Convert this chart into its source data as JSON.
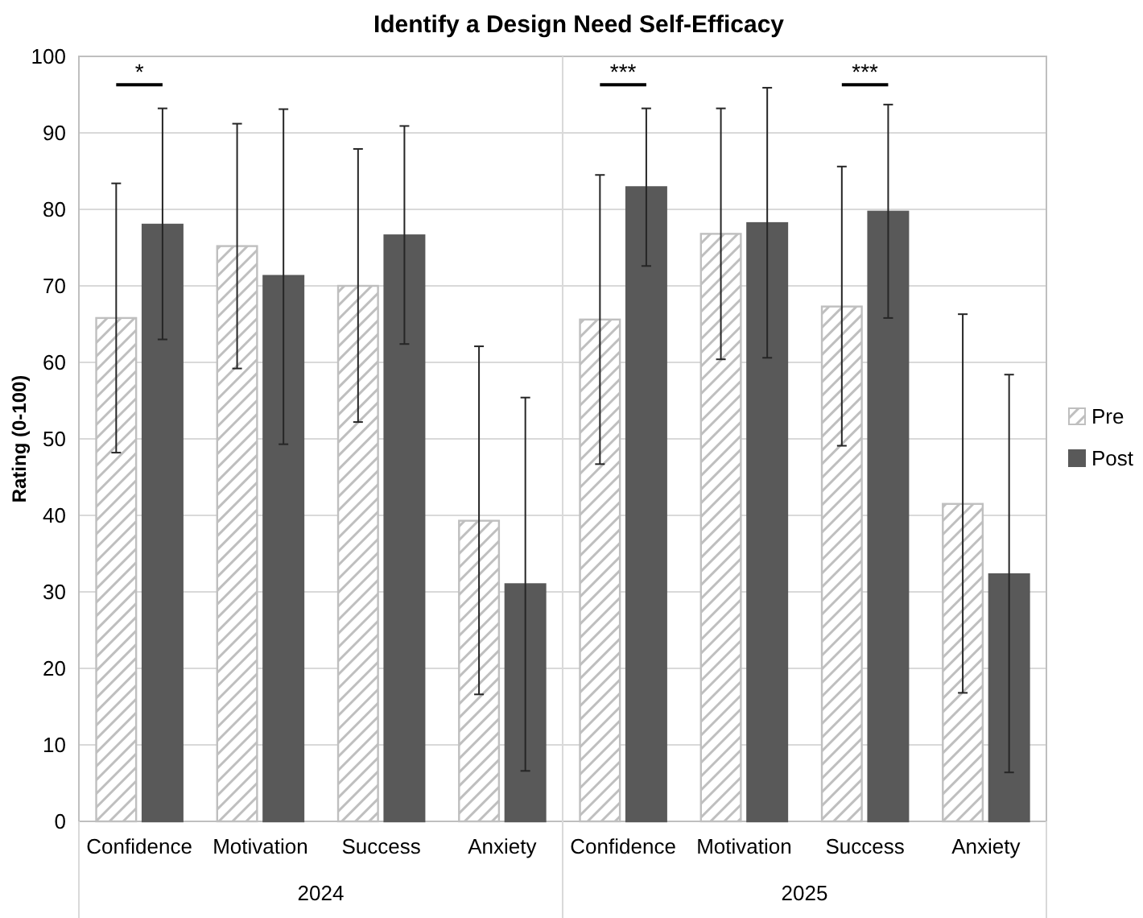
{
  "chart_data": {
    "type": "bar",
    "title": "Identify a Design Need Self-Efficacy",
    "ylabel": "Rating (0-100)",
    "categories": [
      "Confidence",
      "Motivation",
      "Success",
      "Anxiety",
      "Confidence",
      "Motivation",
      "Success",
      "Anxiety"
    ],
    "series": [
      {
        "name": "Pre",
        "color": "#bfbfbf",
        "values": [
          65.8,
          75.2,
          70,
          39.3,
          65.6,
          76.8,
          67.3,
          41.5
        ],
        "errors": [
          [
            48.2,
            83.4
          ],
          [
            59.2,
            91.2
          ],
          [
            52.2,
            87.9
          ],
          [
            16.6,
            62.1
          ],
          [
            46.7,
            84.5
          ],
          [
            60.4,
            93.2
          ],
          [
            49.1,
            85.6
          ],
          [
            16.8,
            66.3
          ]
        ]
      },
      {
        "name": "Post",
        "color": "#595959",
        "values": [
          78,
          71.3,
          76.6,
          31,
          82.9,
          78.2,
          79.7,
          32.3
        ],
        "errors": [
          [
            63,
            93.2
          ],
          [
            49.3,
            93.1
          ],
          [
            62.4,
            90.9
          ],
          [
            6.6,
            55.4
          ],
          [
            72.6,
            93.2
          ],
          [
            60.6,
            95.9
          ],
          [
            65.8,
            93.7
          ],
          [
            6.4,
            58.4
          ]
        ]
      }
    ],
    "annotations": [
      "2024",
      "2025",
      "*",
      "***",
      "***"
    ],
    "ylim": [
      0,
      100
    ],
    "yticks": [
      0,
      10,
      20,
      30,
      40,
      50,
      60,
      70,
      80,
      90,
      100
    ],
    "grid": "y",
    "legend": "right"
  }
}
